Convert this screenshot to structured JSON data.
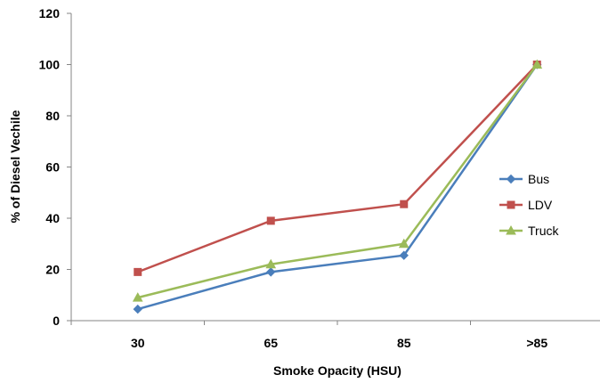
{
  "chart_data": {
    "type": "line",
    "categories": [
      "30",
      "65",
      "85",
      ">85"
    ],
    "series": [
      {
        "name": "Bus",
        "values": [
          4.5,
          19,
          25.5,
          100
        ],
        "color": "#4a7ebb",
        "marker": "diamond"
      },
      {
        "name": "LDV",
        "values": [
          19,
          39,
          45.5,
          100
        ],
        "color": "#c0504d",
        "marker": "square"
      },
      {
        "name": "Truck",
        "values": [
          9,
          22,
          30,
          100
        ],
        "color": "#9bbb59",
        "marker": "triangle"
      }
    ],
    "xlabel": "Smoke Opacity (HSU)",
    "ylabel": "% of Diesel Vechile",
    "ylim": [
      0,
      120
    ],
    "yticks": [
      0,
      20,
      40,
      60,
      80,
      100,
      120
    ],
    "grid": false,
    "legend_position": "right"
  }
}
